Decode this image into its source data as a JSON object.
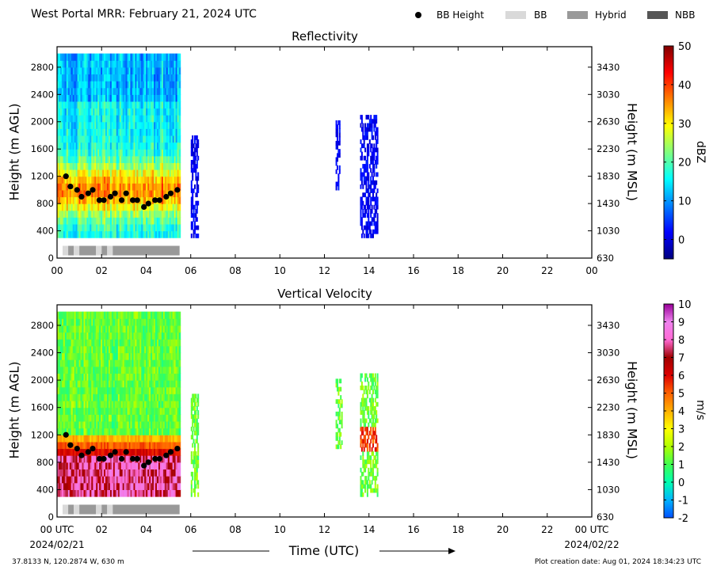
{
  "header": {
    "title": "West Portal MRR:  February 21, 2024 UTC"
  },
  "legend": {
    "items": [
      {
        "label": "BB Height",
        "kind": "marker",
        "color": "#000000"
      },
      {
        "label": "BB",
        "kind": "patch",
        "color": "#d9d9d9"
      },
      {
        "label": "Hybrid",
        "kind": "patch",
        "color": "#999999"
      },
      {
        "label": "NBB",
        "kind": "patch",
        "color": "#555555"
      }
    ]
  },
  "x_axis": {
    "label": "Time (UTC)",
    "tick_labels_top": [
      "00",
      "02",
      "04",
      "06",
      "08",
      "10",
      "12",
      "14",
      "16",
      "18",
      "20",
      "22",
      "00"
    ],
    "tick_labels_bottom": [
      "00 UTC",
      "02",
      "04",
      "06",
      "08",
      "10",
      "12",
      "14",
      "16",
      "18",
      "20",
      "22",
      "00 UTC"
    ],
    "start_date": "2024/02/21",
    "end_date": "2024/02/22",
    "range_hours": [
      0,
      24
    ]
  },
  "footer": {
    "location": "37.8133 N, 120.2874 W, 630 m",
    "creation": "Plot creation date: Aug 01, 2024 18:34:23 UTC"
  },
  "chart_data": [
    {
      "type": "heatmap",
      "title": "Reflectivity",
      "ylabel": "Height (m AGL)",
      "y2label": "Height (m MSL)",
      "ylim": [
        0,
        3100
      ],
      "yticks": [
        0,
        400,
        800,
        1200,
        1600,
        2000,
        2400,
        2800
      ],
      "y2ticks": [
        630,
        1030,
        1430,
        1830,
        2230,
        2630,
        3030,
        3430
      ],
      "xlim": [
        0,
        24
      ],
      "colorbar": {
        "label": "dBZ",
        "ticks": [
          0,
          10,
          20,
          30,
          40,
          50
        ],
        "range": [
          -5,
          50
        ],
        "colors": [
          "#00007f",
          "#0000ff",
          "#007fff",
          "#00ffff",
          "#7fff7f",
          "#ffff00",
          "#ff7f00",
          "#ff0000",
          "#7f0000"
        ]
      },
      "echo_regions": [
        {
          "t_start": 0,
          "t_end": 5.5,
          "h_start": 300,
          "h_end": 3000,
          "description": "precipitation, strongest near melting layer"
        },
        {
          "t_start": 6.0,
          "t_end": 6.3,
          "h_start": 300,
          "h_end": 1800
        },
        {
          "t_start": 12.5,
          "t_end": 12.7,
          "h_start": 1000,
          "h_end": 2000
        },
        {
          "t_start": 13.6,
          "t_end": 14.4,
          "h_start": 300,
          "h_end": 2100
        }
      ],
      "bb_height": {
        "t": [
          0.4,
          0.6,
          0.9,
          1.1,
          1.4,
          1.6,
          1.9,
          2.1,
          2.4,
          2.6,
          2.9,
          3.1,
          3.4,
          3.6,
          3.9,
          4.1,
          4.4,
          4.6,
          4.9,
          5.1,
          5.4
        ],
        "h": [
          1200,
          1050,
          1000,
          900,
          950,
          1000,
          850,
          850,
          900,
          950,
          850,
          950,
          850,
          850,
          750,
          800,
          850,
          850,
          900,
          950,
          1000
        ]
      },
      "bb_type_segments": [
        {
          "t_start": 0.25,
          "t_end": 0.5,
          "type": "BB"
        },
        {
          "t_start": 0.5,
          "t_end": 0.75,
          "type": "Hybrid"
        },
        {
          "t_start": 0.75,
          "t_end": 1.0,
          "type": "BB"
        },
        {
          "t_start": 1.0,
          "t_end": 1.75,
          "type": "Hybrid"
        },
        {
          "t_start": 1.75,
          "t_end": 2.0,
          "type": "BB"
        },
        {
          "t_start": 2.0,
          "t_end": 2.25,
          "type": "Hybrid"
        },
        {
          "t_start": 2.25,
          "t_end": 2.5,
          "type": "BB"
        },
        {
          "t_start": 2.5,
          "t_end": 5.5,
          "type": "Hybrid"
        }
      ]
    },
    {
      "type": "heatmap",
      "title": "Vertical Velocity",
      "ylabel": "Height (m AGL)",
      "y2label": "Height (m MSL)",
      "ylim": [
        0,
        3100
      ],
      "yticks": [
        0,
        400,
        800,
        1200,
        1600,
        2000,
        2400,
        2800
      ],
      "y2ticks": [
        630,
        1030,
        1430,
        1830,
        2230,
        2630,
        3030,
        3430
      ],
      "xlim": [
        0,
        24
      ],
      "colorbar": {
        "label": "m/s",
        "ticks": [
          -2,
          -1,
          0,
          1,
          2,
          3,
          4,
          5,
          6,
          7,
          8,
          9,
          10
        ],
        "range": [
          -2,
          10
        ],
        "colors": [
          "#0050ff",
          "#00b4ff",
          "#00ffb0",
          "#40ff50",
          "#b0ff00",
          "#ffff00",
          "#ffb000",
          "#ff6000",
          "#dd0000",
          "#a00000",
          "#ff6ad5",
          "#ee82ee",
          "#990099"
        ]
      },
      "echo_regions": [
        {
          "t_start": 0,
          "t_end": 5.5,
          "h_start": 300,
          "h_end": 3000,
          "description": "snow aloft ~1 m/s, rain below melting layer 6-9 m/s"
        },
        {
          "t_start": 6.0,
          "t_end": 6.3,
          "h_start": 300,
          "h_end": 1800
        },
        {
          "t_start": 12.5,
          "t_end": 12.8,
          "h_start": 1000,
          "h_end": 2000
        },
        {
          "t_start": 13.6,
          "t_end": 14.4,
          "h_start": 300,
          "h_end": 2100
        }
      ],
      "bb_height": {
        "t": [
          0.4,
          0.6,
          0.9,
          1.1,
          1.4,
          1.6,
          1.9,
          2.1,
          2.4,
          2.6,
          2.9,
          3.1,
          3.4,
          3.6,
          3.9,
          4.1,
          4.4,
          4.6,
          4.9,
          5.1,
          5.4
        ],
        "h": [
          1200,
          1050,
          1000,
          900,
          950,
          1000,
          850,
          850,
          900,
          950,
          850,
          950,
          850,
          850,
          750,
          800,
          850,
          850,
          900,
          950,
          1000
        ]
      },
      "bb_type_segments": [
        {
          "t_start": 0.25,
          "t_end": 0.5,
          "type": "BB"
        },
        {
          "t_start": 0.5,
          "t_end": 0.75,
          "type": "Hybrid"
        },
        {
          "t_start": 0.75,
          "t_end": 1.0,
          "type": "BB"
        },
        {
          "t_start": 1.0,
          "t_end": 1.75,
          "type": "Hybrid"
        },
        {
          "t_start": 1.75,
          "t_end": 2.0,
          "type": "BB"
        },
        {
          "t_start": 2.0,
          "t_end": 2.25,
          "type": "Hybrid"
        },
        {
          "t_start": 2.25,
          "t_end": 2.5,
          "type": "BB"
        },
        {
          "t_start": 2.5,
          "t_end": 5.5,
          "type": "Hybrid"
        }
      ]
    }
  ]
}
